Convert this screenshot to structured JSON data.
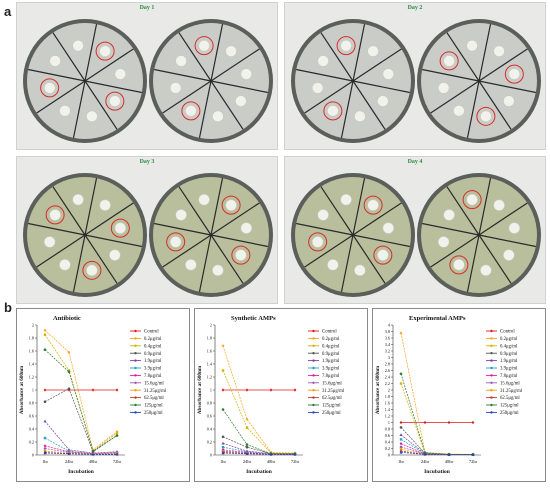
{
  "figure": {
    "panel_a_label": "a",
    "panel_b_label": "b",
    "days": [
      "Day 1",
      "Day 2",
      "Day 3",
      "Day 4"
    ]
  },
  "legend_items": [
    {
      "label": "Control",
      "color": "#e31a1c"
    },
    {
      "label": "0.2μg/ml",
      "color": "#ff9f1c"
    },
    {
      "label": "0.4μg/ml",
      "color": "#d4b000"
    },
    {
      "label": "0.9μg/ml",
      "color": "#555555"
    },
    {
      "label": "1.9μg/ml",
      "color": "#7b3fa0"
    },
    {
      "label": "3.9μg/ml",
      "color": "#1fa2c4"
    },
    {
      "label": "7.8μg/ml",
      "color": "#e4198a"
    },
    {
      "label": "15.6μg/ml",
      "color": "#9b59b6"
    },
    {
      "label": "31.25μg/ml",
      "color": "#f39c12"
    },
    {
      "label": "62.5μg/ml",
      "color": "#c0392b"
    },
    {
      "label": "125μg/ml",
      "color": "#2e7d32"
    },
    {
      "label": "250μg/ml",
      "color": "#1f3fbf"
    }
  ],
  "chart_data": [
    {
      "type": "line",
      "title": "Antibiotic",
      "xlabel": "Incubation",
      "ylabel": "Absorbance at 600nm",
      "categories": [
        "1hr",
        "24hr",
        "48hr",
        "72hr"
      ],
      "ylim": [
        0,
        2
      ],
      "yticks": [
        "0",
        "0.2",
        "0.4",
        "0.6",
        "0.8",
        "1",
        "1.2",
        "1.4",
        "1.6",
        "1.8",
        "2"
      ],
      "grid": false,
      "legend": "right",
      "series": [
        {
          "name": "Control",
          "values": [
            1.0,
            1.0,
            1.0,
            1.0
          ]
        },
        {
          "name": "0.2μg/ml",
          "values": [
            1.92,
            1.58,
            0.08,
            0.36
          ]
        },
        {
          "name": "0.4μg/ml",
          "values": [
            1.85,
            1.3,
            0.06,
            0.34
          ]
        },
        {
          "name": "0.9μg/ml",
          "values": [
            0.82,
            1.02,
            0.05,
            0.3
          ]
        },
        {
          "name": "1.9μg/ml",
          "values": [
            0.52,
            0.08,
            0.03,
            0.05
          ]
        },
        {
          "name": "3.9μg/ml",
          "values": [
            0.26,
            0.06,
            0.02,
            0.04
          ]
        },
        {
          "name": "7.8μg/ml",
          "values": [
            0.14,
            0.05,
            0.02,
            0.03
          ]
        },
        {
          "name": "15.6μg/ml",
          "values": [
            0.1,
            0.04,
            0.02,
            0.02
          ]
        },
        {
          "name": "31.25μg/ml",
          "values": [
            0.06,
            0.03,
            0.01,
            0.02
          ]
        },
        {
          "name": "62.5μg/ml",
          "values": [
            0.04,
            0.02,
            0.01,
            0.01
          ]
        },
        {
          "name": "125μg/ml",
          "values": [
            1.62,
            1.28,
            0.06,
            0.3
          ]
        },
        {
          "name": "250μg/ml",
          "values": [
            0.03,
            0.02,
            0.01,
            0.01
          ]
        }
      ]
    },
    {
      "type": "line",
      "title": "Synthetic AMPs",
      "xlabel": "Incubation",
      "ylabel": "Absorbance at 600nm",
      "categories": [
        "1hr",
        "24hr",
        "48hr",
        "72hr"
      ],
      "ylim": [
        0,
        2
      ],
      "yticks": [
        "0",
        "0.2",
        "0.4",
        "0.6",
        "0.8",
        "1",
        "1.2",
        "1.4",
        "1.6",
        "1.8",
        "2"
      ],
      "grid": false,
      "legend": "right",
      "series": [
        {
          "name": "Control",
          "values": [
            1.0,
            1.0,
            1.0,
            1.0
          ]
        },
        {
          "name": "0.2μg/ml",
          "values": [
            1.68,
            0.55,
            0.04,
            0.03
          ]
        },
        {
          "name": "0.4μg/ml",
          "values": [
            1.3,
            0.42,
            0.03,
            0.02
          ]
        },
        {
          "name": "0.9μg/ml",
          "values": [
            0.28,
            0.12,
            0.02,
            0.02
          ]
        },
        {
          "name": "1.9μg/ml",
          "values": [
            0.18,
            0.06,
            0.02,
            0.01
          ]
        },
        {
          "name": "3.9μg/ml",
          "values": [
            0.12,
            0.05,
            0.01,
            0.01
          ]
        },
        {
          "name": "7.8μg/ml",
          "values": [
            0.08,
            0.04,
            0.01,
            0.01
          ]
        },
        {
          "name": "15.6μg/ml",
          "values": [
            0.06,
            0.03,
            0.01,
            0.01
          ]
        },
        {
          "name": "31.25μg/ml",
          "values": [
            0.05,
            0.02,
            0.01,
            0.01
          ]
        },
        {
          "name": "62.5μg/ml",
          "values": [
            0.04,
            0.02,
            0.01,
            0.01
          ]
        },
        {
          "name": "125μg/ml",
          "values": [
            0.7,
            0.16,
            0.02,
            0.02
          ]
        },
        {
          "name": "250μg/ml",
          "values": [
            0.03,
            0.02,
            0.01,
            0.01
          ]
        }
      ]
    },
    {
      "type": "line",
      "title": "Experimental AMPs",
      "xlabel": "Incubation",
      "ylabel": "Absorbance at 600nm",
      "categories": [
        "1hr",
        "24hr",
        "48hr",
        "72hr"
      ],
      "ylim": [
        0,
        4
      ],
      "yticks": [
        "0",
        "0.2",
        "0.4",
        "0.6",
        "0.8",
        "1",
        "1.2",
        "1.4",
        "1.6",
        "1.8",
        "2",
        "2.2",
        "2.4",
        "2.6",
        "2.8",
        "3",
        "3.2",
        "3.4",
        "3.6",
        "3.8",
        "4"
      ],
      "grid": false,
      "legend": "right",
      "series": [
        {
          "name": "Control",
          "values": [
            1.0,
            1.0,
            1.0,
            1.0
          ]
        },
        {
          "name": "0.2μg/ml",
          "values": [
            3.75,
            0.08,
            0.03,
            0.02
          ]
        },
        {
          "name": "0.4μg/ml",
          "values": [
            2.2,
            0.06,
            0.02,
            0.02
          ]
        },
        {
          "name": "0.9μg/ml",
          "values": [
            0.85,
            0.05,
            0.02,
            0.01
          ]
        },
        {
          "name": "1.9μg/ml",
          "values": [
            0.62,
            0.04,
            0.02,
            0.01
          ]
        },
        {
          "name": "3.9μg/ml",
          "values": [
            0.48,
            0.04,
            0.01,
            0.01
          ]
        },
        {
          "name": "7.8μg/ml",
          "values": [
            0.35,
            0.03,
            0.01,
            0.01
          ]
        },
        {
          "name": "15.6μg/ml",
          "values": [
            0.25,
            0.03,
            0.01,
            0.01
          ]
        },
        {
          "name": "31.25μg/ml",
          "values": [
            0.18,
            0.02,
            0.01,
            0.01
          ]
        },
        {
          "name": "62.5μg/ml",
          "values": [
            0.12,
            0.02,
            0.01,
            0.01
          ]
        },
        {
          "name": "125μg/ml",
          "values": [
            2.5,
            0.07,
            0.02,
            0.02
          ]
        },
        {
          "name": "250μg/ml",
          "values": [
            0.08,
            0.02,
            0.01,
            0.01
          ]
        }
      ]
    }
  ]
}
